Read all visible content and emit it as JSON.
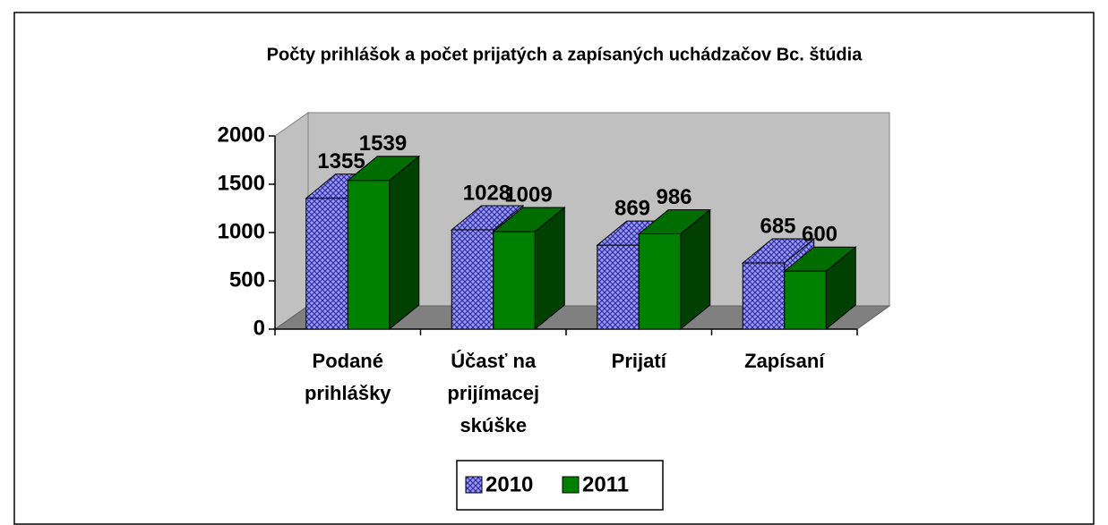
{
  "chart_data": {
    "type": "bar3d",
    "title": "Počty prihlášok a počet prijatých a zapísaných uchádzačov Bc. štúdia",
    "categories": [
      "Podané prihlášky",
      "Účasť na prijímacej skúške",
      "Prijatí",
      "Zapísaní"
    ],
    "series": [
      {
        "name": "2010",
        "color": "#9999ff",
        "values": [
          1355,
          1028,
          869,
          685
        ]
      },
      {
        "name": "2011",
        "color": "#008000",
        "values": [
          1539,
          1009,
          986,
          600
        ]
      }
    ],
    "ylim": [
      0,
      2000
    ],
    "yticks": [
      0,
      500,
      1000,
      1500,
      2000
    ],
    "legend": "bottom"
  }
}
